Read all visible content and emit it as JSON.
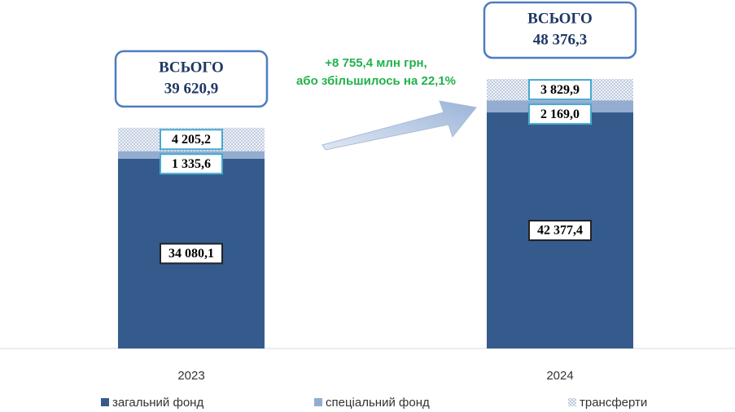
{
  "chart_data": {
    "type": "stacked_bar",
    "categories": [
      "2023",
      "2024"
    ],
    "series": [
      {
        "name": "загальний фонд",
        "color": "#345b8c",
        "values": [
          34080.1,
          42377.4
        ],
        "value_labels": [
          "34 080,1",
          "42 377,4"
        ]
      },
      {
        "name": "спеціальний фонд",
        "color": "#93acd0",
        "values": [
          1335.6,
          2169.0
        ],
        "value_labels": [
          "1 335,6",
          "2 169,0"
        ]
      },
      {
        "name": "трансферти",
        "color": "#c9d4e4",
        "pattern": "dots",
        "values": [
          4205.2,
          3829.9
        ],
        "value_labels": [
          "4 205,2",
          "3 829,9"
        ]
      }
    ],
    "totals": {
      "label": "ВСЬОГО",
      "values": [
        39620.9,
        48376.3
      ],
      "value_labels": [
        "39 620,9",
        "48 376,3"
      ]
    },
    "annotation": [
      "+8 755,4 млн грн,",
      "або збільшилось на 22,1%"
    ],
    "legend": "bottom"
  }
}
